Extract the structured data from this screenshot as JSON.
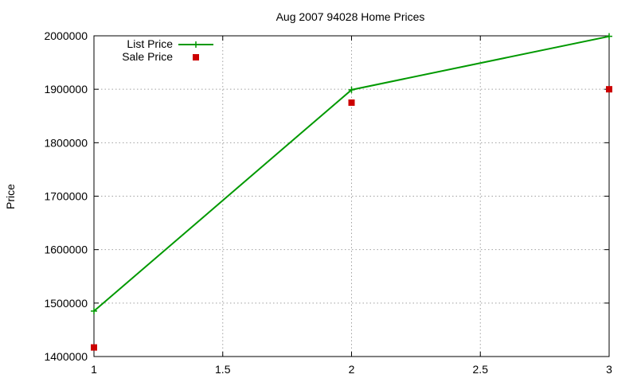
{
  "chart_data": {
    "type": "line",
    "title": "Aug 2007 94028 Home Prices",
    "xlabel": "",
    "ylabel": "Price",
    "xlim": [
      1,
      3
    ],
    "ylim": [
      1400000,
      2000000
    ],
    "x_ticks": [
      "1",
      "1.5",
      "2",
      "2.5",
      "3"
    ],
    "y_ticks": [
      "1400000",
      "1500000",
      "1600000",
      "1700000",
      "1800000",
      "1900000",
      "2000000"
    ],
    "x_tick_values": [
      1,
      1.5,
      2,
      2.5,
      3
    ],
    "y_tick_values": [
      1400000,
      1500000,
      1600000,
      1700000,
      1800000,
      1900000,
      2000000
    ],
    "grid": true,
    "legend_position": "top-left",
    "x": [
      1,
      2,
      3
    ],
    "series": [
      {
        "name": "List Price",
        "kind": "line-with-plus-markers",
        "color": "#009900",
        "values": [
          1485000,
          1899000,
          1999000
        ]
      },
      {
        "name": "Sale Price",
        "kind": "square-points",
        "color": "#cc0000",
        "values": [
          1417000,
          1875000,
          1900000
        ]
      }
    ]
  }
}
